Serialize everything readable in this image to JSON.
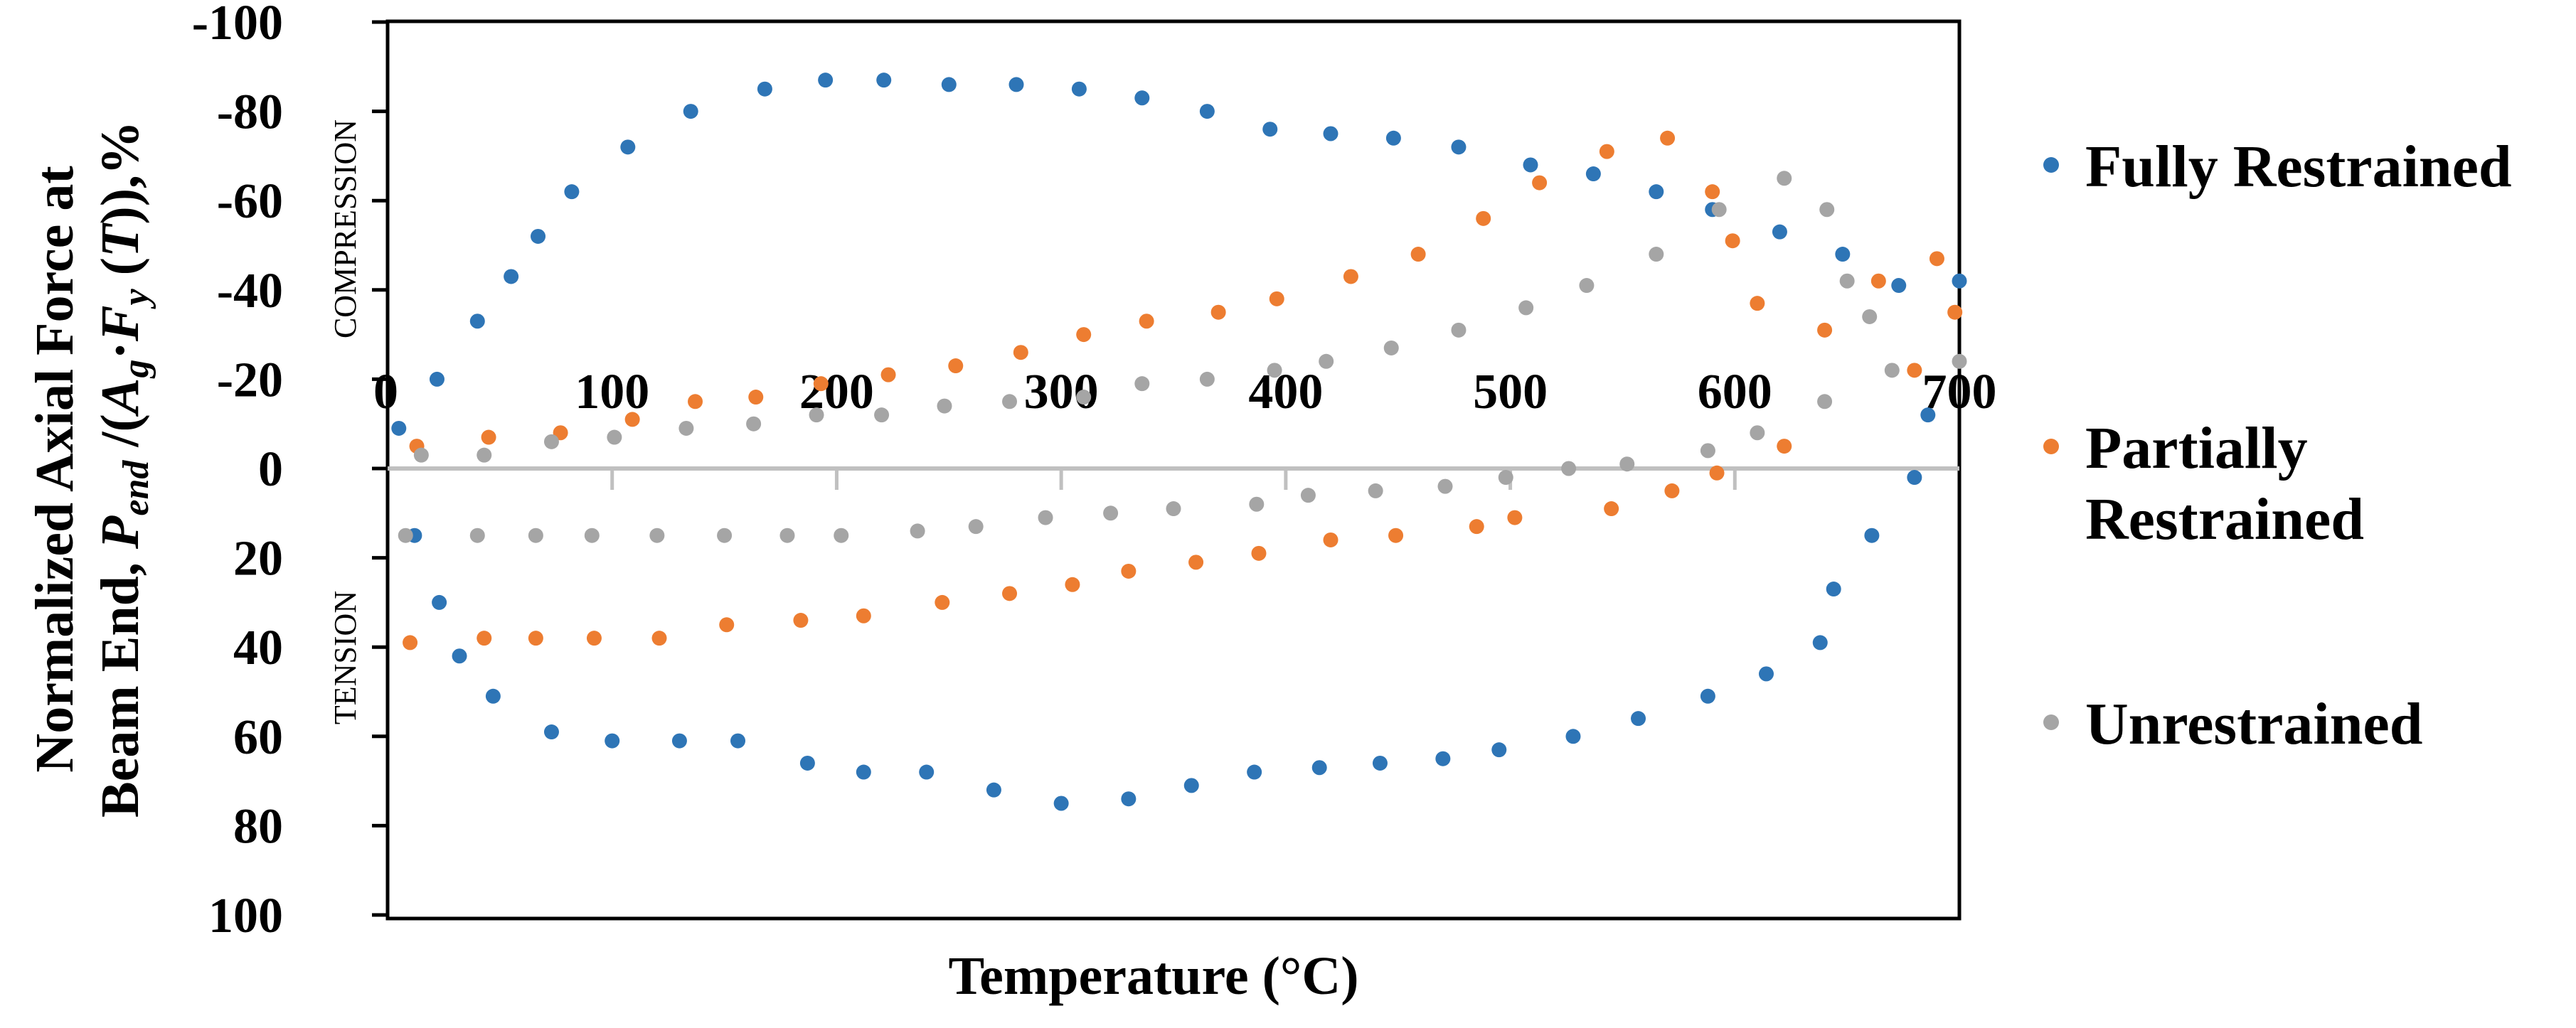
{
  "chart_data": {
    "type": "scatter",
    "title": "",
    "xlabel": "Temperature (°C)",
    "ylabel_line1": "Normalized Axial Force at",
    "ylabel_line2_prefix": "Beam End, ",
    "ylabel_P": "P",
    "ylabel_end": "end",
    "ylabel_mid": " /(",
    "ylabel_A": "A",
    "ylabel_g": "g",
    "ylabel_dot": "·",
    "ylabel_F": "F",
    "ylabel_y": "y",
    "ylabel_open": " (",
    "ylabel_T": "T",
    "ylabel_close": ")),%",
    "xlim": [
      0,
      700
    ],
    "ylim": [
      -100,
      100
    ],
    "y_reversed": true,
    "x_ticks": [
      "0",
      "100",
      "200",
      "300",
      "400",
      "500",
      "600",
      "700"
    ],
    "x_tick_values": [
      0,
      100,
      200,
      300,
      400,
      500,
      600,
      700
    ],
    "y_ticks": [
      "-100",
      "-80",
      "-60",
      "-40",
      "-20",
      "0",
      "20",
      "40",
      "60",
      "80",
      "100"
    ],
    "y_tick_values": [
      -100,
      -80,
      -60,
      -40,
      -20,
      0,
      20,
      40,
      60,
      80,
      100
    ],
    "annotations": {
      "compression": "COMPRESSION",
      "tension": "TENSION"
    },
    "legend_position": "right",
    "series": [
      {
        "name": "Fully Restrained",
        "color": "#2E75B6",
        "points": [
          [
            5,
            -9
          ],
          [
            22,
            -20
          ],
          [
            40,
            -33
          ],
          [
            55,
            -43
          ],
          [
            67,
            -52
          ],
          [
            82,
            -62
          ],
          [
            107,
            -72
          ],
          [
            135,
            -80
          ],
          [
            168,
            -85
          ],
          [
            195,
            -87
          ],
          [
            221,
            -87
          ],
          [
            250,
            -86
          ],
          [
            280,
            -86
          ],
          [
            308,
            -85
          ],
          [
            336,
            -83
          ],
          [
            365,
            -80
          ],
          [
            393,
            -76
          ],
          [
            420,
            -75
          ],
          [
            448,
            -74
          ],
          [
            477,
            -72
          ],
          [
            509,
            -68
          ],
          [
            537,
            -66
          ],
          [
            565,
            -62
          ],
          [
            590,
            -58
          ],
          [
            620,
            -53
          ],
          [
            648,
            -48
          ],
          [
            673,
            -41
          ],
          [
            686,
            -12
          ],
          [
            700,
            -42
          ],
          [
            680,
            2
          ],
          [
            661,
            15
          ],
          [
            644,
            27
          ],
          [
            638,
            39
          ],
          [
            614,
            46
          ],
          [
            588,
            51
          ],
          [
            557,
            56
          ],
          [
            528,
            60
          ],
          [
            495,
            63
          ],
          [
            470,
            65
          ],
          [
            442,
            66
          ],
          [
            415,
            67
          ],
          [
            386,
            68
          ],
          [
            358,
            71
          ],
          [
            330,
            74
          ],
          [
            300,
            75
          ],
          [
            270,
            72
          ],
          [
            240,
            68
          ],
          [
            212,
            68
          ],
          [
            187,
            66
          ],
          [
            156,
            61
          ],
          [
            130,
            61
          ],
          [
            100,
            61
          ],
          [
            73,
            59
          ],
          [
            47,
            51
          ],
          [
            32,
            42
          ],
          [
            23,
            30
          ],
          [
            12,
            15
          ]
        ]
      },
      {
        "name": "Partially Restrained",
        "color": "#ED7D31",
        "points": [
          [
            13,
            -5
          ],
          [
            45,
            -7
          ],
          [
            77,
            -8
          ],
          [
            109,
            -11
          ],
          [
            137,
            -15
          ],
          [
            164,
            -16
          ],
          [
            193,
            -19
          ],
          [
            223,
            -21
          ],
          [
            253,
            -23
          ],
          [
            282,
            -26
          ],
          [
            310,
            -30
          ],
          [
            338,
            -33
          ],
          [
            370,
            -35
          ],
          [
            396,
            -38
          ],
          [
            429,
            -43
          ],
          [
            459,
            -48
          ],
          [
            488,
            -56
          ],
          [
            513,
            -64
          ],
          [
            543,
            -71
          ],
          [
            570,
            -74
          ],
          [
            590,
            -62
          ],
          [
            599,
            -51
          ],
          [
            610,
            -37
          ],
          [
            640,
            -31
          ],
          [
            664,
            -42
          ],
          [
            680,
            -22
          ],
          [
            690,
            -47
          ],
          [
            698,
            -35
          ],
          [
            622,
            -5
          ],
          [
            592,
            1
          ],
          [
            572,
            5
          ],
          [
            545,
            9
          ],
          [
            502,
            11
          ],
          [
            485,
            13
          ],
          [
            449,
            15
          ],
          [
            420,
            16
          ],
          [
            388,
            19
          ],
          [
            360,
            21
          ],
          [
            330,
            23
          ],
          [
            305,
            26
          ],
          [
            277,
            28
          ],
          [
            247,
            30
          ],
          [
            212,
            33
          ],
          [
            184,
            34
          ],
          [
            151,
            35
          ],
          [
            121,
            38
          ],
          [
            92,
            38
          ],
          [
            66,
            38
          ],
          [
            43,
            38
          ],
          [
            10,
            39
          ]
        ]
      },
      {
        "name": "Unrestrained",
        "color": "#A5A5A5",
        "points": [
          [
            15,
            -3
          ],
          [
            43,
            -3
          ],
          [
            73,
            -6
          ],
          [
            101,
            -7
          ],
          [
            133,
            -9
          ],
          [
            163,
            -10
          ],
          [
            191,
            -12
          ],
          [
            220,
            -12
          ],
          [
            248,
            -14
          ],
          [
            277,
            -15
          ],
          [
            310,
            -16
          ],
          [
            336,
            -19
          ],
          [
            365,
            -20
          ],
          [
            395,
            -22
          ],
          [
            418,
            -24
          ],
          [
            447,
            -27
          ],
          [
            477,
            -31
          ],
          [
            507,
            -36
          ],
          [
            534,
            -41
          ],
          [
            565,
            -48
          ],
          [
            593,
            -58
          ],
          [
            622,
            -65
          ],
          [
            641,
            -58
          ],
          [
            650,
            -42
          ],
          [
            660,
            -34
          ],
          [
            640,
            -15
          ],
          [
            670,
            -22
          ],
          [
            700,
            -24
          ],
          [
            610,
            -8
          ],
          [
            588,
            -4
          ],
          [
            552,
            -1
          ],
          [
            526,
            0
          ],
          [
            498,
            2
          ],
          [
            471,
            4
          ],
          [
            440,
            5
          ],
          [
            410,
            6
          ],
          [
            387,
            8
          ],
          [
            350,
            9
          ],
          [
            322,
            10
          ],
          [
            293,
            11
          ],
          [
            262,
            13
          ],
          [
            236,
            14
          ],
          [
            202,
            15
          ],
          [
            178,
            15
          ],
          [
            150,
            15
          ],
          [
            120,
            15
          ],
          [
            91,
            15
          ],
          [
            66,
            15
          ],
          [
            40,
            15
          ],
          [
            8,
            15
          ]
        ]
      }
    ]
  }
}
